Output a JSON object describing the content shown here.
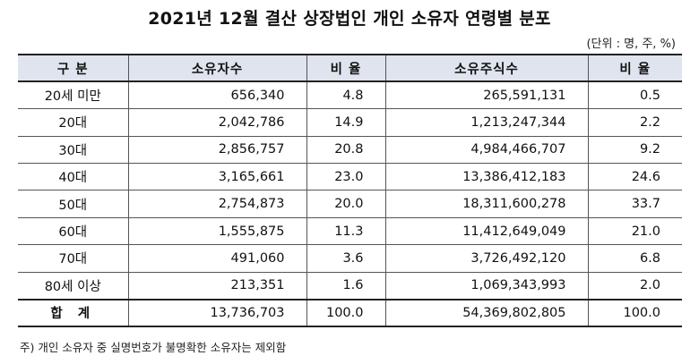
{
  "title": "2021년 12월 결산 상장법인 개인 소유자 연령별 분포",
  "unit": "(단위 : 명, 주, %)",
  "table": {
    "headers": [
      "구  분",
      "소유자수",
      "비  율",
      "소유주식수",
      "비  율"
    ],
    "rows": [
      [
        "20세 미만",
        "656,340",
        "4.8",
        "265,591,131",
        "0.5"
      ],
      [
        "20대",
        "2,042,786",
        "14.9",
        "1,213,247,344",
        "2.2"
      ],
      [
        "30대",
        "2,856,757",
        "20.8",
        "4,984,466,707",
        "9.2"
      ],
      [
        "40대",
        "3,165,661",
        "23.0",
        "13,386,412,183",
        "24.6"
      ],
      [
        "50대",
        "2,754,873",
        "20.0",
        "18,311,600,278",
        "33.7"
      ],
      [
        "60대",
        "1,555,875",
        "11.3",
        "11,412,649,049",
        "21.0"
      ],
      [
        "70대",
        "491,060",
        "3.6",
        "3,726,492,120",
        "6.8"
      ],
      [
        "80세 이상",
        "213,351",
        "1.6",
        "1,069,343,993",
        "2.0"
      ]
    ],
    "total": [
      "합  계",
      "13,736,703",
      "100.0",
      "54,369,802,805",
      "100.0"
    ]
  },
  "note": "주) 개인 소유자 중 실명번호가 불명확한 소유자는 제외함"
}
